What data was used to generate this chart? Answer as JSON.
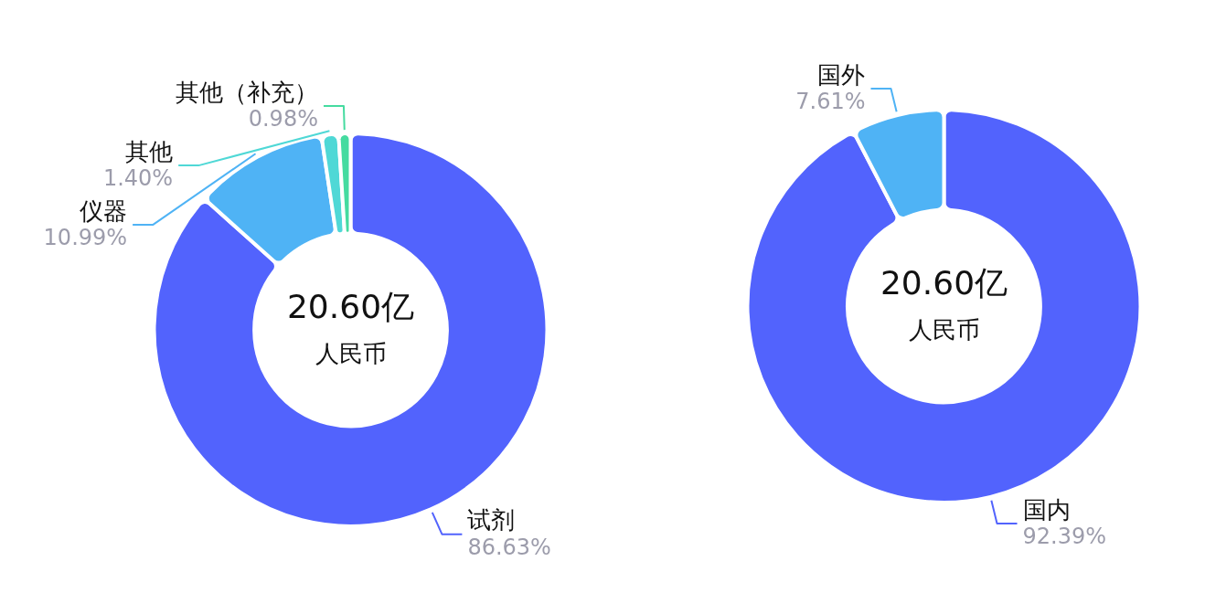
{
  "chart_data": [
    {
      "type": "donut",
      "categories": [
        "试剂",
        "仪器",
        "其他",
        "其他（补充）"
      ],
      "values": [
        86.63,
        10.99,
        1.4,
        0.98
      ],
      "value_labels": [
        "86.63%",
        "10.99%",
        "1.40%",
        "0.98%"
      ],
      "colors": [
        "#5263fd",
        "#4fb3f5",
        "#4fd8d6",
        "#45dba0"
      ],
      "annotations": [
        "20.60亿",
        "人民币"
      ]
    },
    {
      "type": "donut",
      "categories": [
        "国内",
        "国外"
      ],
      "values": [
        92.39,
        7.61
      ],
      "value_labels": [
        "92.39%",
        "7.61%"
      ],
      "colors": [
        "#5263fd",
        "#4fb3f5"
      ],
      "annotations": [
        "20.60亿",
        "人民币"
      ]
    }
  ]
}
